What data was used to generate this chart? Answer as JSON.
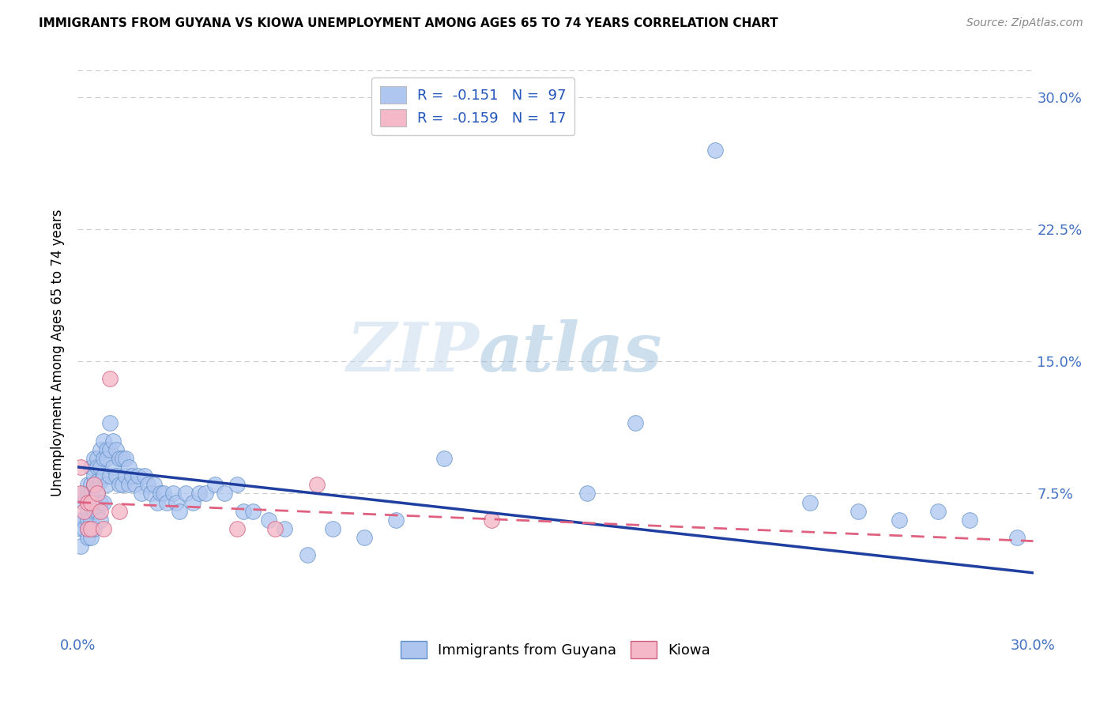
{
  "title": "IMMIGRANTS FROM GUYANA VS KIOWA UNEMPLOYMENT AMONG AGES 65 TO 74 YEARS CORRELATION CHART",
  "source": "Source: ZipAtlas.com",
  "ylabel": "Unemployment Among Ages 65 to 74 years",
  "xlim": [
    0,
    0.3
  ],
  "ylim": [
    -0.005,
    0.315
  ],
  "watermark_zip": "ZIP",
  "watermark_atlas": "atlas",
  "legend_entries": [
    {
      "label_r": "R = ",
      "r_val": "-0.151",
      "label_n": "   N = ",
      "n_val": "97",
      "color": "#aec6f0"
    },
    {
      "label_r": "R = ",
      "r_val": "-0.159",
      "label_n": "   N = ",
      "n_val": "17",
      "color": "#f4b8c8"
    }
  ],
  "legend_bottom": [
    "Immigrants from Guyana",
    "Kiowa"
  ],
  "blue_scatter": {
    "color": "#aec6ef",
    "edgecolor": "#6090c8",
    "x": [
      0.001,
      0.001,
      0.001,
      0.002,
      0.002,
      0.002,
      0.002,
      0.003,
      0.003,
      0.003,
      0.003,
      0.003,
      0.003,
      0.004,
      0.004,
      0.004,
      0.004,
      0.004,
      0.004,
      0.005,
      0.005,
      0.005,
      0.005,
      0.005,
      0.005,
      0.006,
      0.006,
      0.006,
      0.006,
      0.006,
      0.007,
      0.007,
      0.007,
      0.007,
      0.007,
      0.008,
      0.008,
      0.008,
      0.008,
      0.009,
      0.009,
      0.009,
      0.01,
      0.01,
      0.01,
      0.011,
      0.011,
      0.012,
      0.012,
      0.013,
      0.013,
      0.014,
      0.014,
      0.015,
      0.015,
      0.016,
      0.016,
      0.017,
      0.018,
      0.019,
      0.02,
      0.021,
      0.022,
      0.023,
      0.024,
      0.025,
      0.026,
      0.027,
      0.028,
      0.03,
      0.031,
      0.032,
      0.034,
      0.036,
      0.038,
      0.04,
      0.043,
      0.046,
      0.05,
      0.052,
      0.055,
      0.06,
      0.065,
      0.072,
      0.08,
      0.09,
      0.1,
      0.115,
      0.16,
      0.175,
      0.2,
      0.23,
      0.245,
      0.258,
      0.27,
      0.28,
      0.295
    ],
    "y": [
      0.06,
      0.055,
      0.045,
      0.075,
      0.07,
      0.06,
      0.055,
      0.08,
      0.075,
      0.065,
      0.06,
      0.055,
      0.05,
      0.09,
      0.08,
      0.075,
      0.07,
      0.06,
      0.05,
      0.095,
      0.085,
      0.08,
      0.07,
      0.065,
      0.055,
      0.095,
      0.09,
      0.082,
      0.075,
      0.065,
      0.1,
      0.09,
      0.082,
      0.07,
      0.06,
      0.105,
      0.095,
      0.085,
      0.07,
      0.1,
      0.095,
      0.08,
      0.115,
      0.1,
      0.085,
      0.105,
      0.09,
      0.1,
      0.085,
      0.095,
      0.08,
      0.095,
      0.08,
      0.095,
      0.085,
      0.09,
      0.08,
      0.085,
      0.08,
      0.085,
      0.075,
      0.085,
      0.08,
      0.075,
      0.08,
      0.07,
      0.075,
      0.075,
      0.07,
      0.075,
      0.07,
      0.065,
      0.075,
      0.07,
      0.075,
      0.075,
      0.08,
      0.075,
      0.08,
      0.065,
      0.065,
      0.06,
      0.055,
      0.04,
      0.055,
      0.05,
      0.06,
      0.095,
      0.075,
      0.115,
      0.27,
      0.07,
      0.065,
      0.06,
      0.065,
      0.06,
      0.05
    ]
  },
  "pink_scatter": {
    "color": "#f4b8c8",
    "edgecolor": "#d06080",
    "x": [
      0.001,
      0.001,
      0.002,
      0.003,
      0.003,
      0.004,
      0.004,
      0.005,
      0.006,
      0.007,
      0.008,
      0.01,
      0.013,
      0.05,
      0.062,
      0.075,
      0.13
    ],
    "y": [
      0.09,
      0.075,
      0.065,
      0.07,
      0.055,
      0.07,
      0.055,
      0.08,
      0.075,
      0.065,
      0.055,
      0.14,
      0.065,
      0.055,
      0.055,
      0.08,
      0.06
    ]
  },
  "blue_line": {
    "color": "#1e3ea0",
    "x_start": 0.0,
    "x_end": 0.3,
    "y_start": 0.09,
    "y_end": 0.03
  },
  "pink_line": {
    "color": "#e06080",
    "linestyle": "--",
    "x_start": 0.0,
    "x_end": 0.3,
    "y_start": 0.07,
    "y_end": 0.048
  },
  "background_color": "#ffffff",
  "grid_color": "#cccccc",
  "title_fontsize": 11,
  "axis_tick_color": "#4472c4",
  "y_tick_positions": [
    0.075,
    0.15,
    0.225,
    0.3
  ],
  "y_tick_labels": [
    "7.5%",
    "15.0%",
    "22.5%",
    "30.0%"
  ],
  "x_tick_positions": [
    0.0,
    0.3
  ],
  "x_tick_labels": [
    "0.0%",
    "30.0%"
  ]
}
